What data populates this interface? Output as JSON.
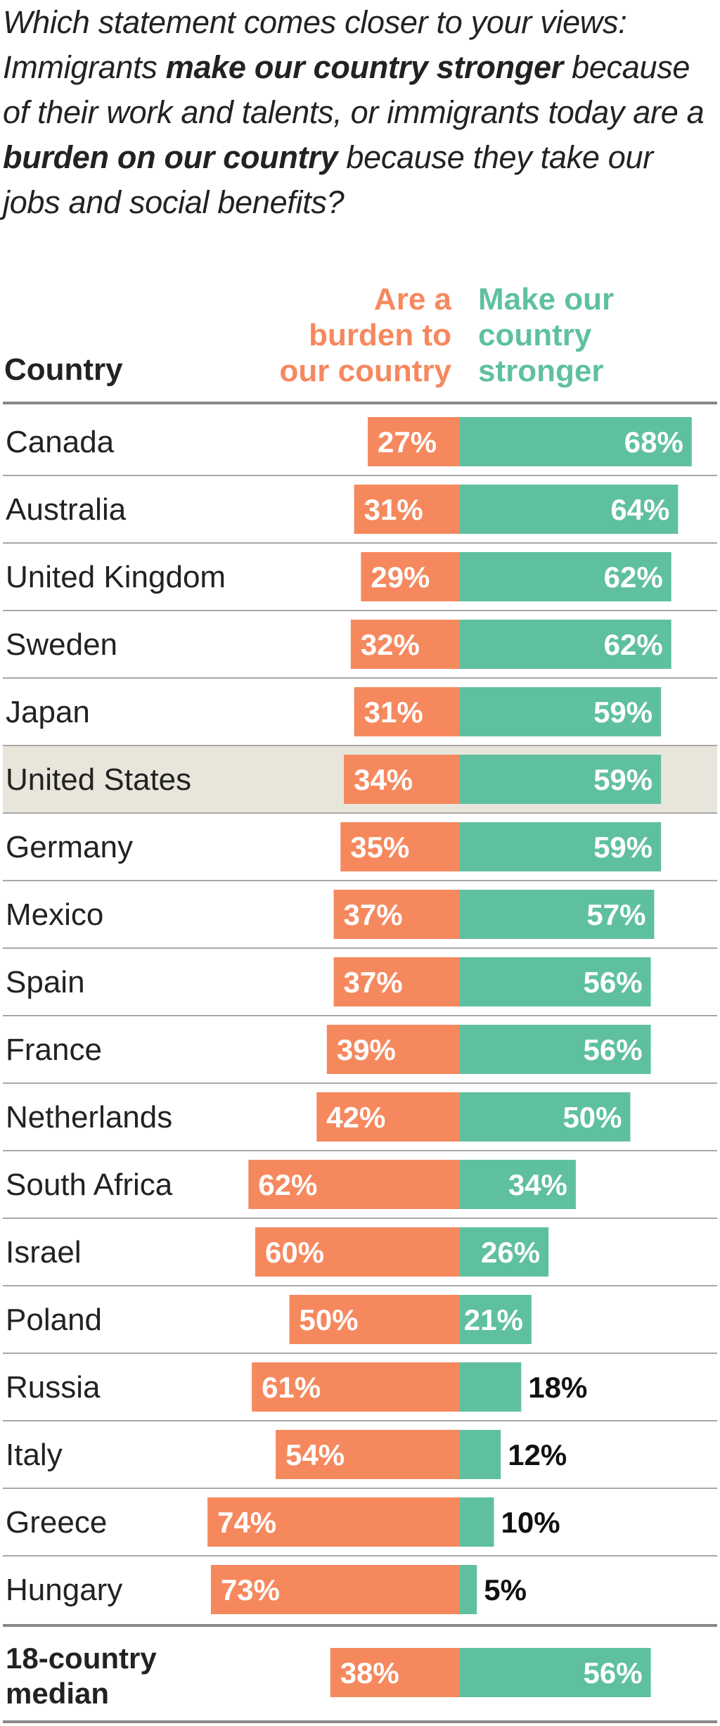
{
  "question": {
    "p1": "Which statement comes closer to your views: Immigrants ",
    "b1": "make our country stronger",
    "p2": " because of their work and talents, or immigrants today are a ",
    "b2": "burden on our country",
    "p3": " because they take our jobs and social benefits?"
  },
  "headers": {
    "country": "Country",
    "burden": [
      "Are a",
      "burden to",
      "our country"
    ],
    "stronger": [
      "Make our",
      "country",
      "stronger"
    ]
  },
  "colors": {
    "burden": "#f6885e",
    "stronger": "#5fc0a0",
    "highlight": "#e8e6db",
    "divider": "#a8a8a8",
    "rule": "#888888"
  },
  "chart_data": {
    "type": "bar",
    "orientation": "horizontal-diverging",
    "xlim": [
      -100,
      100
    ],
    "categories": [
      "Canada",
      "Australia",
      "United Kingdom",
      "Sweden",
      "Japan",
      "United States",
      "Germany",
      "Mexico",
      "Spain",
      "France",
      "Netherlands",
      "South Africa",
      "Israel",
      "Poland",
      "Russia",
      "Italy",
      "Greece",
      "Hungary"
    ],
    "highlighted": "United States",
    "series": [
      {
        "name": "Are a burden to our country",
        "values": [
          27,
          31,
          29,
          32,
          31,
          34,
          35,
          37,
          37,
          39,
          42,
          62,
          60,
          50,
          61,
          54,
          74,
          73
        ]
      },
      {
        "name": "Make our country stronger",
        "values": [
          68,
          64,
          62,
          62,
          59,
          59,
          59,
          57,
          56,
          56,
          50,
          34,
          26,
          21,
          18,
          12,
          10,
          5
        ]
      }
    ],
    "median": {
      "label": [
        "18-country",
        "median"
      ],
      "burden": 38,
      "stronger": 56
    },
    "value_suffix": "%"
  }
}
